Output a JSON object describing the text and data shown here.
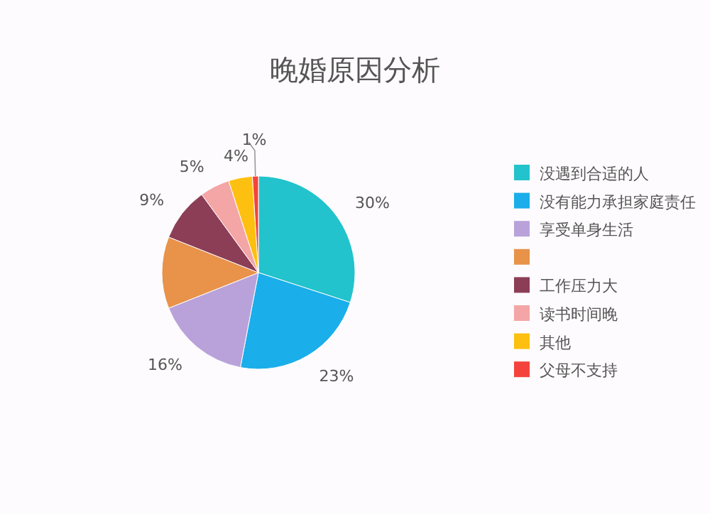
{
  "chart_data": {
    "type": "pie",
    "title": "晚婚原因分析",
    "categories": [
      "没遇到合适的人",
      "没有能力承担家庭责任",
      "享受单身生活",
      null,
      "工作压力大",
      "读书时间晚",
      "其他",
      "父母不支持"
    ],
    "values": [
      30,
      23,
      16,
      12,
      9,
      5,
      4,
      1
    ],
    "value_labels": [
      "30%",
      "23%",
      "16%",
      null,
      "9%",
      "5%",
      "4%",
      "1%"
    ],
    "colors": [
      "#22c3cc",
      "#1aaeea",
      "#b9a2da",
      "#e8924a",
      "#8c3e56",
      "#f4a5a5",
      "#fdc010",
      "#f4433c"
    ],
    "legend": "right"
  }
}
